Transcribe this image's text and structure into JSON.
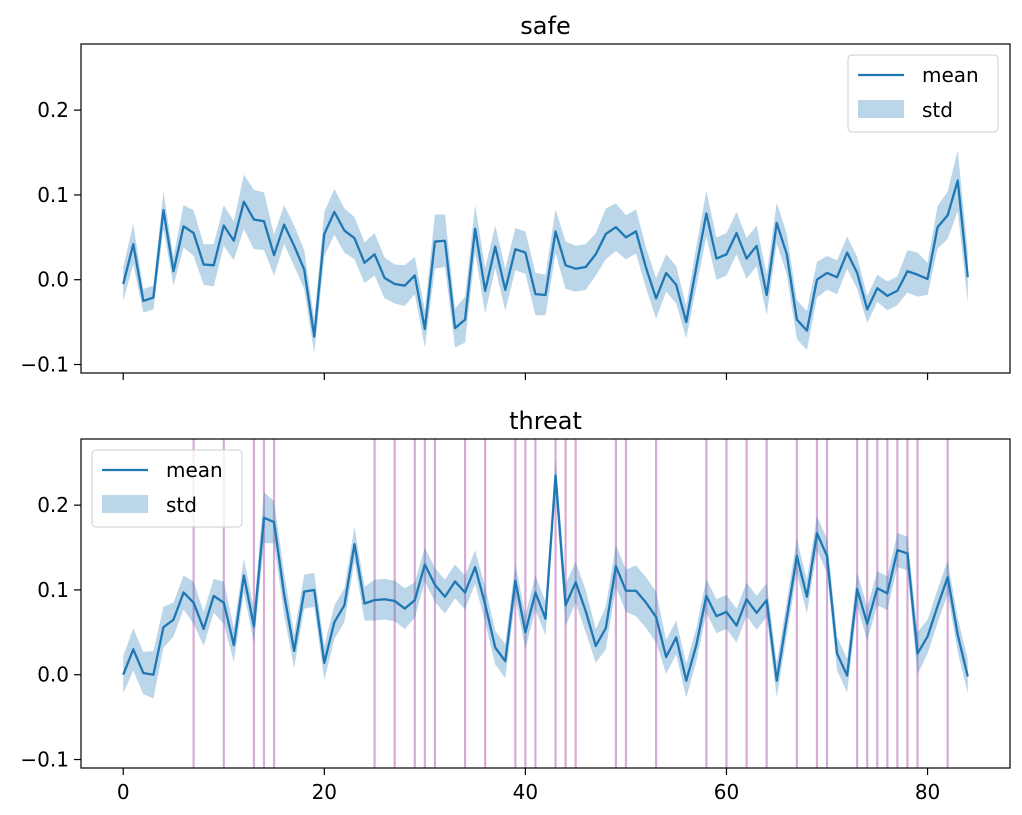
{
  "chart_data": [
    {
      "type": "line",
      "title": "safe",
      "xlim": [
        -4.2,
        88.2
      ],
      "ylim": [
        -0.11,
        0.278
      ],
      "xticks": [
        0,
        20,
        40,
        60,
        80
      ],
      "show_xtick_labels": false,
      "yticks": [
        -0.1,
        0.0,
        0.1,
        0.2
      ],
      "ytick_labels": [
        "−0.1",
        "0.0",
        "0.1",
        "0.2"
      ],
      "legend": {
        "placement": "top-right",
        "entries": [
          "mean",
          "std"
        ]
      },
      "line_color": "#1f77b4",
      "band_color": "#1f77b4",
      "x_start": 0,
      "mean": [
        -0.005,
        0.042,
        -0.025,
        -0.021,
        0.082,
        0.01,
        0.063,
        0.055,
        0.018,
        0.017,
        0.064,
        0.046,
        0.092,
        0.071,
        0.069,
        0.029,
        0.065,
        0.04,
        0.012,
        -0.067,
        0.054,
        0.08,
        0.058,
        0.049,
        0.02,
        0.03,
        0.002,
        -0.005,
        -0.007,
        0.005,
        -0.058,
        0.045,
        0.046,
        -0.057,
        -0.047,
        0.06,
        -0.013,
        0.039,
        -0.012,
        0.036,
        0.032,
        -0.017,
        -0.018,
        0.057,
        0.017,
        0.013,
        0.015,
        0.03,
        0.054,
        0.062,
        0.05,
        0.057,
        0.014,
        -0.022,
        0.008,
        -0.006,
        -0.05,
        0.015,
        0.078,
        0.025,
        0.03,
        0.055,
        0.025,
        0.04,
        -0.018,
        0.067,
        0.03,
        -0.047,
        -0.06,
        0.0,
        0.008,
        0.003,
        0.032,
        0.008,
        -0.035,
        -0.01,
        -0.019,
        -0.013,
        0.01,
        0.006,
        0.001,
        0.062,
        0.076,
        0.117,
        0.003
      ],
      "std": [
        0.02,
        0.024,
        0.014,
        0.014,
        0.022,
        0.017,
        0.025,
        0.027,
        0.024,
        0.025,
        0.024,
        0.023,
        0.032,
        0.035,
        0.034,
        0.024,
        0.023,
        0.024,
        0.023,
        0.02,
        0.026,
        0.027,
        0.026,
        0.025,
        0.024,
        0.025,
        0.024,
        0.023,
        0.024,
        0.022,
        0.022,
        0.032,
        0.031,
        0.023,
        0.027,
        0.028,
        0.027,
        0.025,
        0.025,
        0.025,
        0.025,
        0.025,
        0.024,
        0.026,
        0.028,
        0.027,
        0.027,
        0.025,
        0.03,
        0.028,
        0.026,
        0.026,
        0.024,
        0.024,
        0.022,
        0.022,
        0.019,
        0.024,
        0.027,
        0.025,
        0.025,
        0.025,
        0.024,
        0.024,
        0.024,
        0.024,
        0.024,
        0.023,
        0.023,
        0.021,
        0.02,
        0.02,
        0.019,
        0.019,
        0.016,
        0.016,
        0.017,
        0.017,
        0.025,
        0.026,
        0.019,
        0.025,
        0.028,
        0.036,
        0.03
      ],
      "vlines": []
    },
    {
      "type": "line",
      "title": "threat",
      "xlim": [
        -4.2,
        88.2
      ],
      "ylim": [
        -0.11,
        0.278
      ],
      "xticks": [
        0,
        20,
        40,
        60,
        80
      ],
      "show_xtick_labels": true,
      "xtick_labels": [
        "0",
        "20",
        "40",
        "60",
        "80"
      ],
      "yticks": [
        -0.1,
        0.0,
        0.1,
        0.2
      ],
      "ytick_labels": [
        "−0.1",
        "0.0",
        "0.1",
        "0.2"
      ],
      "legend": {
        "placement": "top-left",
        "entries": [
          "mean",
          "std"
        ]
      },
      "line_color": "#1f77b4",
      "band_color": "#1f77b4",
      "vline_color": "#c98fc5",
      "x_start": 0,
      "mean": [
        0.0,
        0.03,
        0.002,
        0.0,
        0.056,
        0.065,
        0.097,
        0.085,
        0.054,
        0.093,
        0.085,
        0.035,
        0.117,
        0.057,
        0.185,
        0.18,
        0.095,
        0.028,
        0.098,
        0.1,
        0.014,
        0.062,
        0.082,
        0.154,
        0.084,
        0.088,
        0.089,
        0.087,
        0.078,
        0.088,
        0.13,
        0.106,
        0.092,
        0.11,
        0.097,
        0.127,
        0.083,
        0.032,
        0.016,
        0.111,
        0.05,
        0.097,
        0.066,
        0.235,
        0.082,
        0.109,
        0.075,
        0.034,
        0.055,
        0.128,
        0.099,
        0.099,
        0.085,
        0.068,
        0.021,
        0.044,
        -0.007,
        0.035,
        0.093,
        0.069,
        0.074,
        0.058,
        0.089,
        0.073,
        0.088,
        -0.007,
        0.067,
        0.14,
        0.092,
        0.167,
        0.14,
        0.025,
        -0.001,
        0.101,
        0.06,
        0.102,
        0.096,
        0.147,
        0.143,
        0.025,
        0.045,
        0.081,
        0.115,
        0.047,
        -0.002
      ],
      "std": [
        0.022,
        0.025,
        0.025,
        0.028,
        0.024,
        0.02,
        0.02,
        0.025,
        0.02,
        0.02,
        0.025,
        0.02,
        0.02,
        0.02,
        0.03,
        0.025,
        0.025,
        0.02,
        0.02,
        0.02,
        0.02,
        0.02,
        0.02,
        0.02,
        0.02,
        0.024,
        0.024,
        0.024,
        0.024,
        0.021,
        0.02,
        0.02,
        0.02,
        0.02,
        0.02,
        0.02,
        0.021,
        0.02,
        0.02,
        0.02,
        0.02,
        0.02,
        0.02,
        0.02,
        0.025,
        0.024,
        0.025,
        0.02,
        0.025,
        0.025,
        0.025,
        0.03,
        0.03,
        0.03,
        0.02,
        0.02,
        0.02,
        0.02,
        0.02,
        0.02,
        0.02,
        0.02,
        0.02,
        0.02,
        0.02,
        0.02,
        0.02,
        0.02,
        0.02,
        0.02,
        0.02,
        0.02,
        0.02,
        0.02,
        0.02,
        0.02,
        0.02,
        0.02,
        0.02,
        0.025,
        0.02,
        0.02,
        0.02,
        0.02,
        0.02
      ],
      "vlines": [
        7,
        10,
        13,
        14,
        15,
        25,
        27,
        29,
        30,
        31,
        34,
        36,
        39,
        40,
        41,
        43,
        44,
        45,
        49,
        50,
        53,
        58,
        60,
        62,
        64,
        67,
        69,
        70,
        73,
        74,
        75,
        76,
        77,
        78,
        79,
        82
      ]
    }
  ]
}
